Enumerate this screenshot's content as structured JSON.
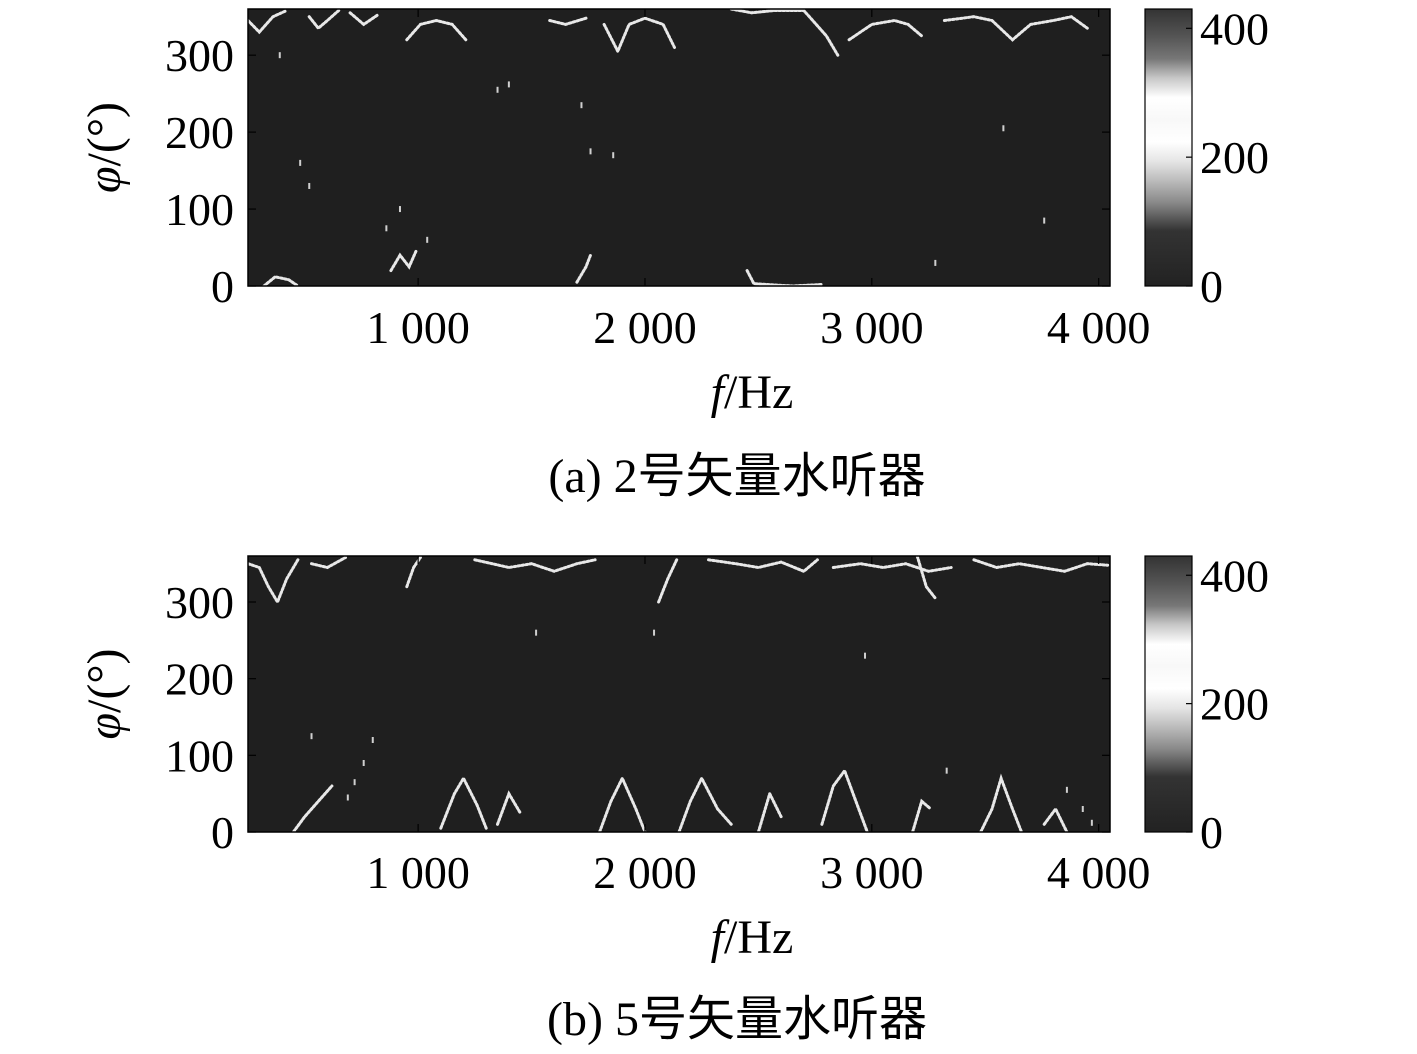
{
  "chart_data": [
    {
      "type": "heatmap",
      "caption": "(a) 2号矢量水听器",
      "xlabel_italic": "f",
      "xlabel_unit": "/Hz",
      "ylabel_italic": "φ",
      "ylabel_unit": "/(°)",
      "xlim": [
        250,
        4050
      ],
      "ylim": [
        0,
        360
      ],
      "xticks": [
        1000,
        2000,
        3000,
        4000
      ],
      "xtick_labels": [
        "1 000",
        "2 000",
        "3 000",
        "4 000"
      ],
      "yticks": [
        0,
        100,
        200,
        300
      ],
      "ytick_labels": [
        "0",
        "100",
        "200",
        "300"
      ],
      "colorbar": {
        "range": [
          0,
          430
        ],
        "ticks": [
          0,
          200,
          400
        ],
        "tick_labels": [
          "0",
          "200",
          "400"
        ]
      },
      "background_color": "#1f1f1f",
      "ridges": [
        {
          "points": [
            [
              250,
              345
            ],
            [
              300,
              330
            ],
            [
              360,
              350
            ],
            [
              420,
              358
            ]
          ]
        },
        {
          "points": [
            [
              520,
              350
            ],
            [
              560,
              335
            ],
            [
              600,
              345
            ],
            [
              650,
              358
            ]
          ]
        },
        {
          "points": [
            [
              700,
              355
            ],
            [
              760,
              340
            ],
            [
              820,
              352
            ]
          ]
        },
        {
          "points": [
            [
              950,
              320
            ],
            [
              1010,
              340
            ],
            [
              1080,
              345
            ],
            [
              1150,
              340
            ],
            [
              1210,
              320
            ]
          ]
        },
        {
          "points": [
            [
              1580,
              345
            ],
            [
              1650,
              340
            ],
            [
              1740,
              348
            ]
          ]
        },
        {
          "points": [
            [
              1820,
              340
            ],
            [
              1880,
              305
            ],
            [
              1930,
              340
            ],
            [
              2000,
              348
            ],
            [
              2080,
              340
            ],
            [
              2130,
              310
            ]
          ]
        },
        {
          "points": [
            [
              2380,
              360
            ],
            [
              2470,
              355
            ],
            [
              2570,
              358
            ],
            [
              2700,
              358
            ],
            [
              2800,
              325
            ],
            [
              2850,
              300
            ]
          ]
        },
        {
          "points": [
            [
              2900,
              320
            ],
            [
              3000,
              340
            ],
            [
              3100,
              345
            ],
            [
              3160,
              340
            ],
            [
              3220,
              325
            ]
          ]
        },
        {
          "points": [
            [
              3320,
              345
            ],
            [
              3450,
              350
            ],
            [
              3530,
              345
            ],
            [
              3620,
              320
            ],
            [
              3700,
              340
            ],
            [
              3800,
              345
            ],
            [
              3880,
              350
            ],
            [
              3950,
              335
            ]
          ]
        },
        {
          "points": [
            [
              320,
              0
            ],
            [
              370,
              12
            ],
            [
              430,
              8
            ],
            [
              470,
              0
            ]
          ]
        },
        {
          "points": [
            [
              880,
              20
            ],
            [
              920,
              40
            ],
            [
              960,
              25
            ],
            [
              990,
              45
            ]
          ]
        },
        {
          "points": [
            [
              1700,
              5
            ],
            [
              1740,
              25
            ],
            [
              1760,
              40
            ]
          ]
        },
        {
          "points": [
            [
              2450,
              20
            ],
            [
              2480,
              3
            ],
            [
              2650,
              0
            ],
            [
              2780,
              2
            ]
          ]
        }
      ],
      "speckles": [
        [
          390,
          300
        ],
        [
          520,
          130
        ],
        [
          480,
          160
        ],
        [
          1350,
          255
        ],
        [
          1400,
          262
        ],
        [
          1720,
          235
        ],
        [
          1760,
          175
        ],
        [
          1860,
          170
        ],
        [
          3580,
          205
        ],
        [
          3760,
          85
        ],
        [
          860,
          75
        ],
        [
          920,
          100
        ],
        [
          1040,
          60
        ],
        [
          3280,
          30
        ]
      ]
    },
    {
      "type": "heatmap",
      "caption": "(b) 5号矢量水听器",
      "xlabel_italic": "f",
      "xlabel_unit": "/Hz",
      "ylabel_italic": "φ",
      "ylabel_unit": "/(°)",
      "xlim": [
        250,
        4050
      ],
      "ylim": [
        0,
        360
      ],
      "xticks": [
        1000,
        2000,
        3000,
        4000
      ],
      "xtick_labels": [
        "1 000",
        "2 000",
        "3 000",
        "4 000"
      ],
      "yticks": [
        0,
        100,
        200,
        300
      ],
      "ytick_labels": [
        "0",
        "100",
        "200",
        "300"
      ],
      "colorbar": {
        "range": [
          0,
          430
        ],
        "ticks": [
          0,
          200,
          400
        ],
        "tick_labels": [
          "0",
          "200",
          "400"
        ]
      },
      "background_color": "#1f1f1f",
      "ridges": [
        {
          "points": [
            [
              250,
              350
            ],
            [
              300,
              345
            ],
            [
              340,
              320
            ],
            [
              380,
              300
            ],
            [
              420,
              330
            ],
            [
              470,
              355
            ]
          ]
        },
        {
          "points": [
            [
              530,
              350
            ],
            [
              600,
              345
            ],
            [
              680,
              358
            ]
          ]
        },
        {
          "points": [
            [
              1250,
              355
            ],
            [
              1400,
              345
            ],
            [
              1500,
              350
            ],
            [
              1600,
              340
            ],
            [
              1700,
              350
            ],
            [
              1780,
              355
            ]
          ]
        },
        {
          "points": [
            [
              2280,
              355
            ],
            [
              2400,
              350
            ],
            [
              2500,
              345
            ],
            [
              2600,
              352
            ],
            [
              2700,
              340
            ],
            [
              2760,
              355
            ]
          ]
        },
        {
          "points": [
            [
              2830,
              345
            ],
            [
              2950,
              350
            ],
            [
              3050,
              345
            ],
            [
              3150,
              350
            ],
            [
              3250,
              340
            ],
            [
              3350,
              345
            ]
          ]
        },
        {
          "points": [
            [
              3450,
              355
            ],
            [
              3550,
              345
            ],
            [
              3650,
              350
            ],
            [
              3750,
              345
            ],
            [
              3850,
              340
            ],
            [
              3950,
              350
            ],
            [
              4040,
              348
            ]
          ]
        },
        {
          "points": [
            [
              950,
              320
            ],
            [
              980,
              345
            ],
            [
              1010,
              358
            ]
          ]
        },
        {
          "points": [
            [
              2060,
              300
            ],
            [
              2100,
              330
            ],
            [
              2140,
              355
            ]
          ]
        },
        {
          "points": [
            [
              3200,
              360
            ],
            [
              3240,
              320
            ],
            [
              3280,
              305
            ]
          ]
        },
        {
          "points": [
            [
              1100,
              5
            ],
            [
              1160,
              50
            ],
            [
              1200,
              70
            ],
            [
              1260,
              35
            ],
            [
              1300,
              5
            ]
          ]
        },
        {
          "points": [
            [
              1350,
              10
            ],
            [
              1400,
              50
            ],
            [
              1450,
              25
            ]
          ]
        },
        {
          "points": [
            [
              1800,
              0
            ],
            [
              1850,
              40
            ],
            [
              1900,
              70
            ],
            [
              1960,
              30
            ],
            [
              2000,
              0
            ]
          ]
        },
        {
          "points": [
            [
              2150,
              0
            ],
            [
              2200,
              40
            ],
            [
              2250,
              70
            ],
            [
              2320,
              30
            ],
            [
              2380,
              10
            ]
          ]
        },
        {
          "points": [
            [
              2500,
              0
            ],
            [
              2550,
              50
            ],
            [
              2600,
              20
            ]
          ]
        },
        {
          "points": [
            [
              2780,
              10
            ],
            [
              2830,
              60
            ],
            [
              2880,
              80
            ],
            [
              2930,
              40
            ],
            [
              2980,
              0
            ]
          ]
        },
        {
          "points": [
            [
              3180,
              0
            ],
            [
              3220,
              40
            ],
            [
              3260,
              30
            ]
          ]
        },
        {
          "points": [
            [
              3480,
              0
            ],
            [
              3530,
              30
            ],
            [
              3570,
              70
            ],
            [
              3620,
              30
            ],
            [
              3660,
              0
            ]
          ]
        },
        {
          "points": [
            [
              3760,
              10
            ],
            [
              3810,
              30
            ],
            [
              3860,
              0
            ]
          ]
        },
        {
          "points": [
            [
              450,
              0
            ],
            [
              500,
              20
            ],
            [
              560,
              40
            ],
            [
              620,
              60
            ]
          ]
        }
      ],
      "speckles": [
        [
          530,
          125
        ],
        [
          690,
          45
        ],
        [
          720,
          65
        ],
        [
          760,
          90
        ],
        [
          800,
          120
        ],
        [
          1520,
          260
        ],
        [
          2040,
          260
        ],
        [
          3330,
          80
        ],
        [
          3860,
          55
        ],
        [
          3930,
          30
        ],
        [
          3970,
          12
        ],
        [
          2970,
          230
        ]
      ]
    }
  ]
}
